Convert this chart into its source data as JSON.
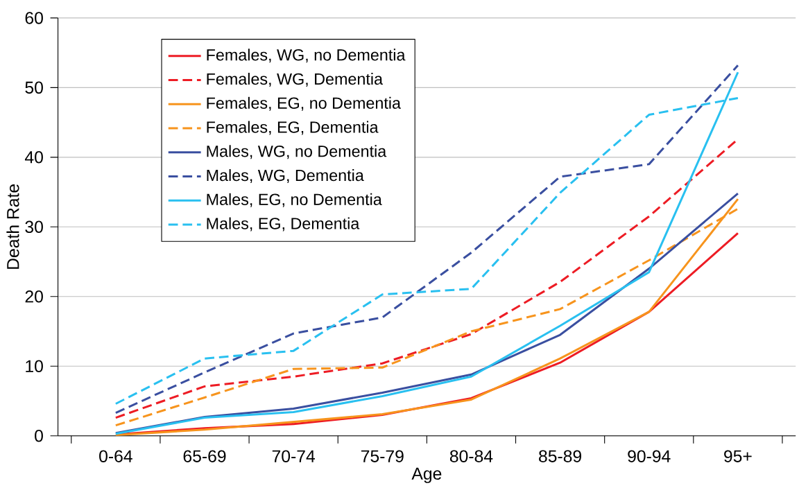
{
  "chart_data": {
    "type": "line",
    "xlabel": "Age",
    "ylabel": "Death Rate",
    "categories": [
      "0-64",
      "65-69",
      "70-74",
      "75-79",
      "80-84",
      "85-89",
      "90-94",
      "95+"
    ],
    "ylim": [
      0,
      60
    ],
    "yticks": [
      0,
      10,
      20,
      30,
      40,
      50,
      60
    ],
    "grid": "y",
    "legend": "top left",
    "marker": "none",
    "series": [
      {
        "name": "Females, WG, no Dementia",
        "color": "#ed1c24",
        "line_style": "solid",
        "values": [
          0.2,
          1.1,
          1.7,
          3.0,
          5.4,
          10.5,
          17.8,
          29.1
        ]
      },
      {
        "name": "Females, WG, Dementia",
        "color": "#ed1c24",
        "line_style": "dashed",
        "values": [
          2.6,
          7.1,
          8.5,
          10.4,
          14.6,
          22.1,
          31.5,
          42.6
        ]
      },
      {
        "name": "Females, EG, no Dementia",
        "color": "#f7941d",
        "line_style": "solid",
        "values": [
          0.1,
          0.9,
          2.0,
          3.1,
          5.2,
          11.1,
          17.8,
          34.0
        ]
      },
      {
        "name": "Females, EG, Dementia",
        "color": "#f7941d",
        "line_style": "dashed",
        "values": [
          1.5,
          5.5,
          9.6,
          9.8,
          15.0,
          18.2,
          25.2,
          32.6
        ]
      },
      {
        "name": "Males, WG, no Dementia",
        "color": "#3a4fa0",
        "line_style": "solid",
        "values": [
          0.4,
          2.7,
          3.9,
          6.2,
          8.8,
          14.5,
          24.0,
          34.8
        ]
      },
      {
        "name": "Males, WG, Dementia",
        "color": "#3a4fa0",
        "line_style": "dashed",
        "values": [
          3.3,
          9.1,
          14.7,
          17.0,
          26.3,
          37.2,
          39.0,
          53.2
        ]
      },
      {
        "name": "Males, EG, no Dementia",
        "color": "#29c0f0",
        "line_style": "solid",
        "values": [
          0.3,
          2.6,
          3.4,
          5.7,
          8.5,
          15.8,
          23.5,
          52.2
        ]
      },
      {
        "name": "Males, EG, Dementia",
        "color": "#29c0f0",
        "line_style": "dashed",
        "values": [
          4.6,
          11.1,
          12.2,
          20.3,
          21.1,
          34.9,
          46.1,
          48.5
        ]
      }
    ]
  }
}
